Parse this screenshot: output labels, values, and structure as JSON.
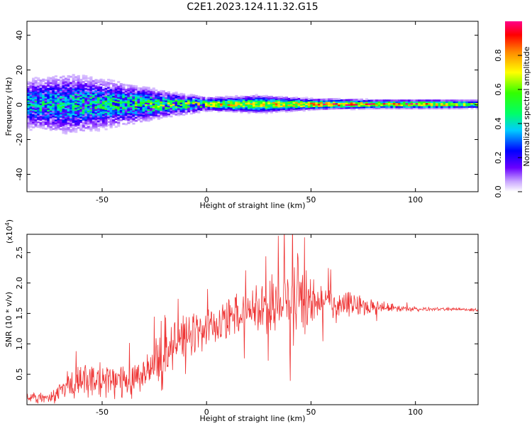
{
  "title": "C2E1.2023.124.11.32.G15",
  "chart_data": [
    {
      "type": "heatmap",
      "title": "C2E1.2023.124.11.32.G15",
      "xlabel": "Height of straight line (km)",
      "ylabel": "Frequency (Hz)",
      "xlim": [
        -86,
        130
      ],
      "ylim": [
        -50,
        48
      ],
      "x_ticks": [
        -50,
        0,
        50,
        100
      ],
      "y_ticks": [
        40,
        20,
        0,
        -20,
        -40
      ],
      "colorbar": {
        "label": "Normalized spectral amplitude",
        "range": [
          0,
          1
        ],
        "ticks": [
          "0.0",
          "0.2",
          "0.4",
          "0.6",
          "0.8"
        ],
        "tick_values": [
          0,
          0.2,
          0.4,
          0.6,
          0.8
        ],
        "colormap": "rainbow (white → violet → blue → cyan → green → yellow → orange → red → magenta)"
      },
      "description_points": [
        {
          "x": -86,
          "freq_spread": 12,
          "peak_amp": 0.45
        },
        {
          "x": -65,
          "freq_spread": 14,
          "peak_amp": 0.5
        },
        {
          "x": -40,
          "freq_spread": 10,
          "peak_amp": 0.55
        },
        {
          "x": -20,
          "freq_spread": 6,
          "peak_amp": 0.65
        },
        {
          "x": 0,
          "freq_spread": 3,
          "peak_amp": 0.8
        },
        {
          "x": 25,
          "freq_spread": 4,
          "peak_amp": 0.75
        },
        {
          "x": 50,
          "freq_spread": 2.5,
          "peak_amp": 0.9
        },
        {
          "x": 80,
          "freq_spread": 2,
          "peak_amp": 0.95
        },
        {
          "x": 110,
          "freq_spread": 2,
          "peak_amp": 0.9
        },
        {
          "x": 130,
          "freq_spread": 2,
          "peak_amp": 0.6
        }
      ]
    },
    {
      "type": "line",
      "xlabel": "Height of straight line (km)",
      "ylabel": "SNR (10 * v/v)",
      "ylabel_multiplier": "(x10^4)",
      "xlim": [
        -86,
        130
      ],
      "ylim": [
        0.0,
        2.8
      ],
      "x_ticks": [
        -50,
        0,
        50,
        100
      ],
      "y_ticks": [
        0.5,
        1.0,
        1.5,
        2.0,
        2.5
      ],
      "color": "#ee3333",
      "envelope": {
        "x": [
          -86,
          -75,
          -68,
          -60,
          -50,
          -40,
          -30,
          -25,
          -20,
          -18,
          -15,
          -10,
          -5,
          0,
          10,
          20,
          30,
          35,
          40,
          45,
          50,
          60,
          70,
          80,
          90,
          100,
          110,
          120,
          130
        ],
        "mean": [
          0.12,
          0.12,
          0.3,
          0.4,
          0.4,
          0.4,
          0.5,
          0.65,
          0.9,
          0.95,
          1.0,
          1.15,
          1.2,
          1.25,
          1.4,
          1.5,
          1.6,
          1.7,
          1.75,
          1.75,
          1.7,
          1.65,
          1.65,
          1.6,
          1.6,
          1.57,
          1.57,
          1.57,
          1.56
        ],
        "amp": [
          0.1,
          0.1,
          0.25,
          0.35,
          0.35,
          0.35,
          0.4,
          0.5,
          0.8,
          0.4,
          0.45,
          0.4,
          0.45,
          0.4,
          0.45,
          0.45,
          0.55,
          0.7,
          0.85,
          0.75,
          0.45,
          0.35,
          0.25,
          0.15,
          0.08,
          0.05,
          0.03,
          0.03,
          0.03
        ]
      }
    }
  ]
}
